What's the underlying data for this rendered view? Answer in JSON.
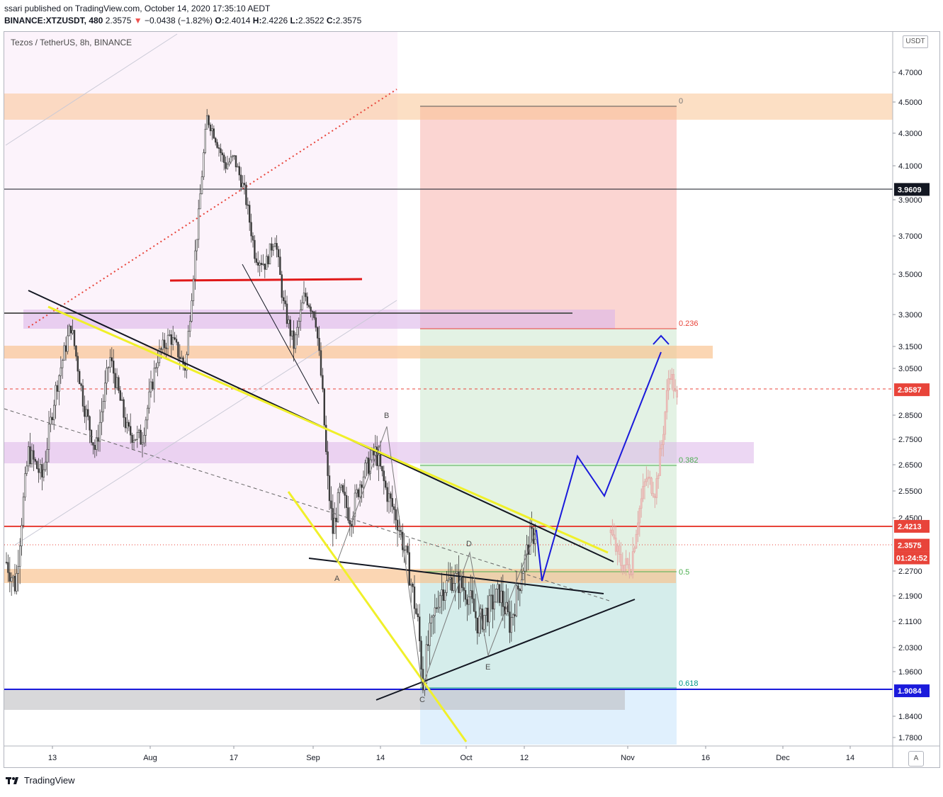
{
  "header": {
    "publisher_line": "ssari published on TradingView.com, October 14, 2020 17:35:10 AEDT",
    "symbol_line": "BINANCE:XTZUSDT, 480",
    "last": "2.3575",
    "change": "−0.0438 (−1.82%)",
    "o_label": "O:",
    "o": "2.4014",
    "h_label": "H:",
    "h": "2.4226",
    "l_label": "L:",
    "l": "2.3522",
    "c_label": "C:",
    "c": "2.3575"
  },
  "chart_title": "Tezos / TetherUS, 8h, BINANCE",
  "currency_button": "USDT",
  "auto_button": "A",
  "footer_brand": "TradingView",
  "colors": {
    "up": "#26a69a",
    "down": "#ef5350",
    "grid_text": "#4a4a4a",
    "zone_orange": "#f9c08a",
    "zone_purple": "#dcb6ea",
    "zone_gray": "#b8b8bc",
    "risk": "#f8b3ad",
    "reward": "#c8e6c9",
    "blue_line": "#1a1adb",
    "yellow_line": "#f0f02a"
  },
  "chart_data": {
    "type": "candlestick",
    "title": "Tezos / TetherUS, 8h, BINANCE",
    "ylim": [
      1.75,
      4.85
    ],
    "y_ticks": [
      1.78,
      1.84,
      1.96,
      2.03,
      2.11,
      2.19,
      2.27,
      2.45,
      2.55,
      2.65,
      2.75,
      2.85,
      3.05,
      3.15,
      3.3,
      3.5,
      3.7,
      3.9,
      4.1,
      4.3,
      4.5,
      4.7
    ],
    "y_tick_labels": [
      "1.7800",
      "1.8400",
      "1.9600",
      "2.0300",
      "2.1100",
      "2.1900",
      "2.2700",
      "2.4500",
      "2.5500",
      "2.6500",
      "2.7500",
      "2.8500",
      "3.0500",
      "3.1500",
      "3.3000",
      "3.5000",
      "3.7000",
      "3.9000",
      "4.1000",
      "4.3000",
      "4.5000",
      "4.7000"
    ],
    "x_labels": [
      "13",
      "Aug",
      "17",
      "Sep",
      "14",
      "Oct",
      "12",
      "Nov",
      "16",
      "Dec",
      "14"
    ],
    "price_labels": [
      {
        "value": 3.9609,
        "text": "3.9609",
        "style": "black"
      },
      {
        "value": 2.9587,
        "text": "2.9587",
        "style": "red"
      },
      {
        "value": 2.4213,
        "text": "2.4213",
        "style": "red"
      },
      {
        "value": 2.3575,
        "text": "2.3575",
        "style": "red"
      },
      {
        "value": 1.9084,
        "text": "1.9084",
        "style": "blue"
      }
    ],
    "countdown": "01:24:52",
    "fib_levels": [
      {
        "ratio": "0",
        "price": 4.47
      },
      {
        "ratio": "0.236",
        "price": 3.22
      },
      {
        "ratio": "0.382",
        "price": 2.65
      },
      {
        "ratio": "0.5",
        "price": 2.28
      },
      {
        "ratio": "0.618",
        "price": 1.91
      }
    ],
    "pattern_points": [
      "A",
      "B",
      "C",
      "D",
      "E"
    ],
    "candles_summary": {
      "start": "Jul 2020",
      "end": "Oct 14 2020",
      "low": 1.9084,
      "high": 4.49,
      "last_close": 2.3575
    }
  }
}
